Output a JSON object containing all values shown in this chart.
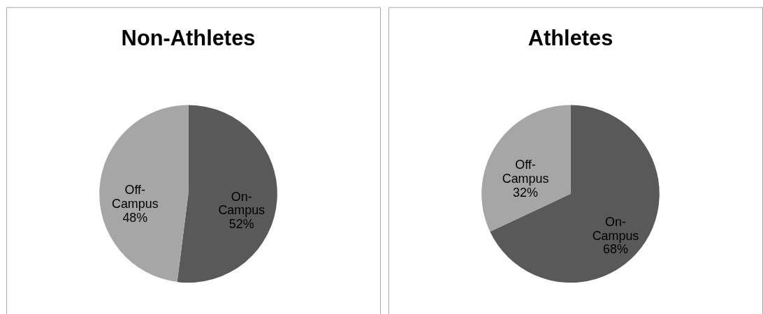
{
  "chart_data": [
    {
      "type": "pie",
      "title": "Non-Athletes",
      "categories": [
        "On-Campus",
        "Off-Campus"
      ],
      "values": [
        52,
        48
      ],
      "value_labels": [
        "52%",
        "48%"
      ],
      "colors": [
        "#595959",
        "#a6a6a6"
      ],
      "legend": false
    },
    {
      "type": "pie",
      "title": "Athletes",
      "categories": [
        "On-Campus",
        "Off-Campus"
      ],
      "values": [
        68,
        32
      ],
      "value_labels": [
        "68%",
        "32%"
      ],
      "colors": [
        "#595959",
        "#a6a6a6"
      ],
      "legend": false
    }
  ]
}
